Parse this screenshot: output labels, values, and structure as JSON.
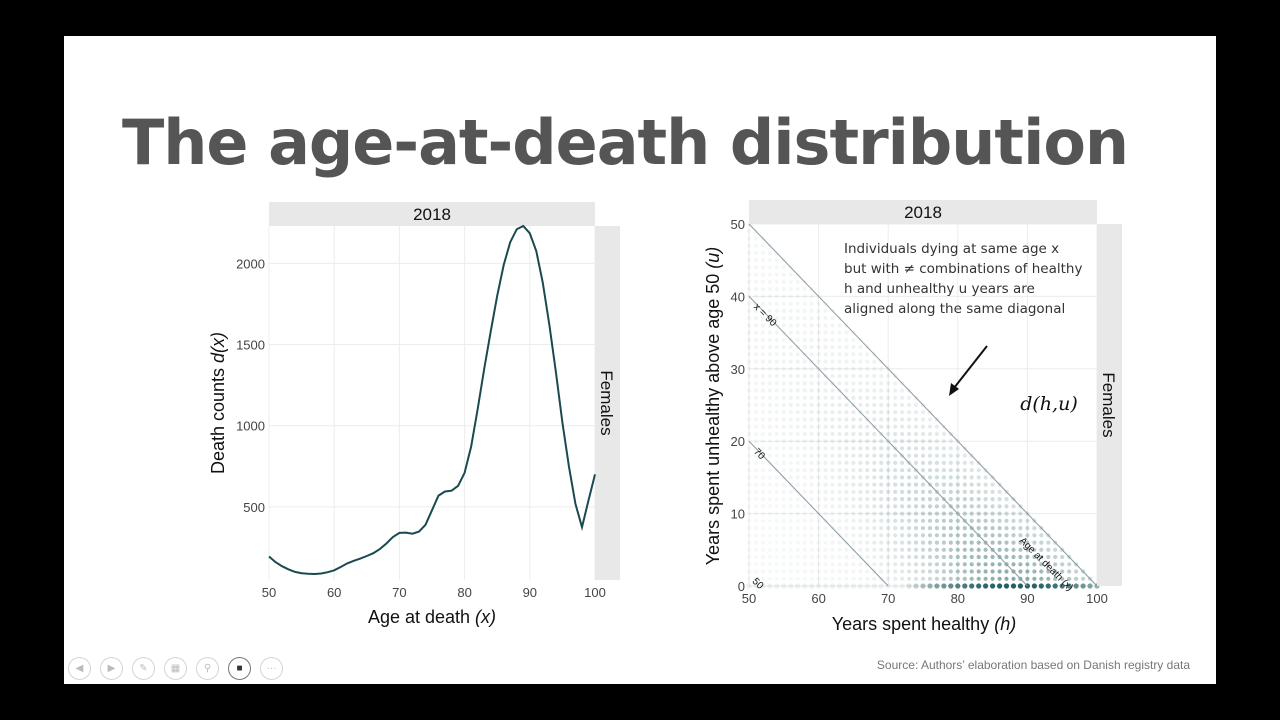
{
  "slide": {
    "title": "The age-at-death distribution",
    "source": "Source: Authors’ elaboration based on Danish registry data"
  },
  "chart_data": [
    {
      "type": "line",
      "strip_top": "2018",
      "strip_right": "Females",
      "title": "",
      "xlabel": "Age at death",
      "xlabel_var": "x",
      "ylabel": "Death counts",
      "ylabel_var": "d(x)",
      "xlim": [
        50,
        100
      ],
      "ylim": [
        50,
        2230
      ],
      "xticks": [
        50,
        60,
        70,
        80,
        90,
        100
      ],
      "yticks": [
        500,
        1000,
        1500,
        2000
      ],
      "grid": true,
      "color": "#1a4a4f",
      "x": [
        50,
        51,
        52,
        53,
        54,
        55,
        56,
        57,
        58,
        59,
        60,
        61,
        62,
        63,
        64,
        65,
        66,
        67,
        68,
        69,
        70,
        71,
        72,
        73,
        74,
        75,
        76,
        77,
        78,
        79,
        80,
        81,
        82,
        83,
        84,
        85,
        86,
        87,
        88,
        89,
        90,
        91,
        92,
        93,
        94,
        95,
        96,
        97,
        98,
        99,
        100
      ],
      "y": [
        195,
        160,
        135,
        115,
        100,
        92,
        88,
        87,
        90,
        98,
        110,
        130,
        152,
        168,
        182,
        198,
        215,
        240,
        275,
        315,
        340,
        342,
        335,
        348,
        390,
        480,
        570,
        595,
        600,
        630,
        710,
        870,
        1100,
        1350,
        1580,
        1800,
        1990,
        2130,
        2210,
        2230,
        2185,
        2075,
        1880,
        1620,
        1330,
        1020,
        750,
        520,
        375,
        540,
        700
      ]
    },
    {
      "type": "heatmap",
      "strip_top": "2018",
      "strip_right": "Females",
      "title": "",
      "xlabel": "Years spent healthy",
      "xlabel_var": "h",
      "ylabel": "Years spent unhealthy above age 50",
      "ylabel_var": "u",
      "xlim": [
        50,
        100
      ],
      "ylim": [
        0,
        50
      ],
      "xticks": [
        50,
        60,
        70,
        80,
        90,
        100
      ],
      "yticks": [
        0,
        10,
        20,
        30,
        40,
        50
      ],
      "grid": true,
      "color": "#1d5c5e",
      "value_label": "d(h,u)",
      "diagonals": [
        {
          "label": "50",
          "age": 50
        },
        {
          "label": "70",
          "age": 70
        },
        {
          "label": "x = 90",
          "age": 90
        },
        {
          "label": "Age at death (x)",
          "age": 100
        }
      ],
      "annotation": [
        "Individuals dying at same age x",
        "but with ≠ combinations of healthy",
        "h and unhealthy u years are",
        "aligned along the same diagonal"
      ]
    }
  ],
  "toolbar": {
    "buttons": [
      {
        "name": "back-icon",
        "glyph": "◀"
      },
      {
        "name": "forward-icon",
        "glyph": "▶"
      },
      {
        "name": "pen-icon",
        "glyph": "✎"
      },
      {
        "name": "slides-icon",
        "glyph": "▦"
      },
      {
        "name": "zoom-icon",
        "glyph": "⚲"
      },
      {
        "name": "camera-icon",
        "glyph": "■"
      },
      {
        "name": "more-icon",
        "glyph": "···"
      }
    ]
  }
}
